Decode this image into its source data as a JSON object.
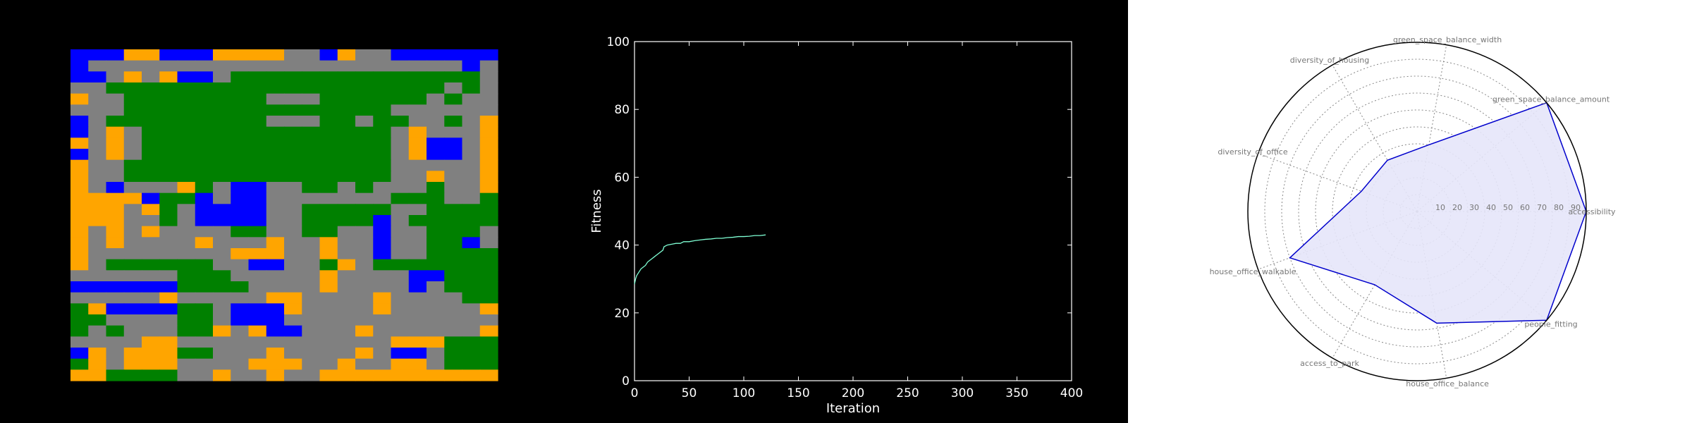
{
  "map": {
    "colors": {
      "green": "#008000",
      "orange": "#FFA500",
      "blue": "#0000FF",
      "road": "#808080"
    },
    "legend": {
      "0": "road",
      "1": "green",
      "2": "orange",
      "3": "blue"
    },
    "grid": [
      "333223332222003200333333",
      "300000000000000000000030",
      "330202330111111111111110",
      "001111111111111111111010",
      "200111111110001111110100",
      "000111111111111111000000",
      "301111111110001101100102",
      "302011111111111111020002",
      "202011111111111111023302",
      "302011111111111111023302",
      "200111111111111111000002",
      "200111111111111111002002",
      "203000210330011010001002",
      "222231130330000000111001",
      "222021033330011111001111",
      "222001033330011113011111",
      "202020000110011003001110",
      "202000020002002003001130",
      "200000000222002003001111",
      "201111110033001201111111",
      "000000111000002000033111",
      "333333111100002000030111",
      "000002000002200002000011",
      "123333110333200002000002",
      "110000110333000000000000",
      "101000112023300020000002",
      "000022000000000000222111",
      "320222110002000020330111",
      "120222000022200200220111",
      "221111002002002222222222"
    ]
  },
  "chart_data": [
    {
      "type": "line",
      "title": "",
      "xlabel": "Iteration",
      "ylabel": "Fitness",
      "xlim": [
        0,
        400
      ],
      "ylim": [
        0,
        100
      ],
      "xticks": [
        0,
        50,
        100,
        150,
        200,
        250,
        300,
        350,
        400
      ],
      "yticks": [
        0,
        20,
        40,
        60,
        80,
        100
      ],
      "grid": false,
      "line_color": "#7fffd4",
      "axis_color": "#ffffff",
      "series": [
        {
          "x": [
            0,
            1,
            2,
            4,
            6,
            8,
            10,
            12,
            14,
            16,
            18,
            20,
            22,
            24,
            26,
            27,
            30,
            35,
            38,
            42,
            45,
            50,
            55,
            60,
            65,
            70,
            75,
            80,
            85,
            90,
            95,
            100,
            105,
            110,
            115,
            120
          ],
          "y": [
            28.5,
            30,
            31,
            32,
            33,
            33.5,
            34,
            35,
            35.5,
            36,
            36.5,
            37,
            37.5,
            38,
            38.5,
            39.5,
            40,
            40.3,
            40.5,
            40.5,
            41,
            41,
            41.3,
            41.5,
            41.7,
            41.8,
            42,
            42,
            42.2,
            42.3,
            42.5,
            42.5,
            42.6,
            42.8,
            42.8,
            43
          ]
        }
      ]
    },
    {
      "type": "radar",
      "title": "",
      "axes": [
        "accessibility",
        "green_space_balance_amount",
        "green_space_balance_width",
        "diversity_of_housing",
        "diversity_of_office",
        "house_office_walkable",
        "access_to_park",
        "house_office_balance",
        "people_fitting"
      ],
      "values": [
        100,
        100,
        40,
        35,
        35,
        80,
        50,
        67,
        100
      ],
      "rmax": 100,
      "rings": [
        10,
        20,
        30,
        40,
        50,
        60,
        70,
        80,
        90
      ],
      "ring_labels": [
        "10",
        "20",
        "30",
        "40",
        "50",
        "60",
        "70",
        "80",
        "90"
      ],
      "polygon_fill": "#e6e6fa",
      "polygon_stroke": "#0000cc"
    }
  ]
}
